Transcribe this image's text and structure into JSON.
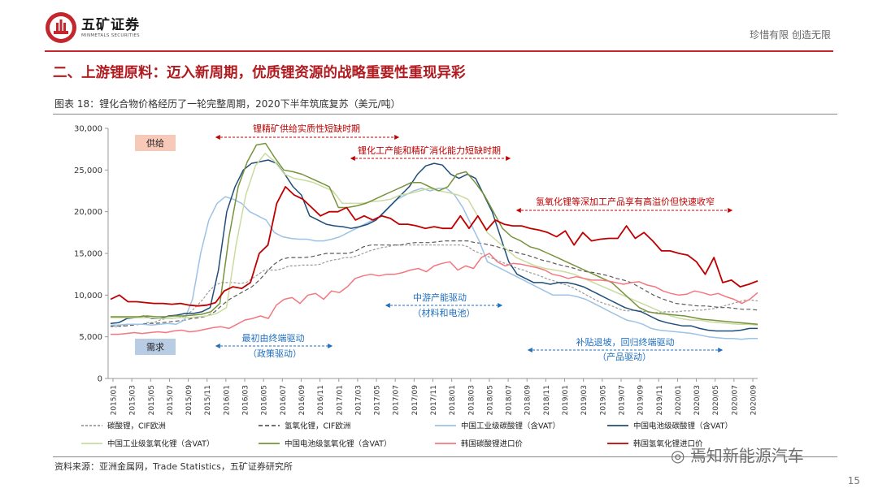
{
  "header": {
    "logo_name": "五矿证券",
    "logo_sub": "MINMETALS SECURITIES",
    "slogan": "珍惜有限  创造无限"
  },
  "section_title": "二、上游锂原料：迈入新周期，优质锂资源的战略重要性重现异彩",
  "figure_title": "图表 18：锂化合物价格经历了一轮完整周期，2020下半年筑底复苏（美元/吨）",
  "source": "资料来源：亚洲金属网，Trade Statistics，五矿证券研究所",
  "page_number": "15",
  "watermark": "焉知新能源汽车",
  "colors": {
    "brand_red": "#c3262c",
    "supply_box": "#f7c9b8",
    "demand_box": "#b8cce4"
  },
  "chart_data": {
    "type": "line",
    "title": "锂化合物价格经历了一轮完整周期，2020下半年筑底复苏（美元/吨）",
    "ylim": [
      0,
      30000
    ],
    "yticks": [
      "0",
      "5,000",
      "10,000",
      "15,000",
      "20,000",
      "25,000",
      "30,000"
    ],
    "yvalues": [
      0,
      5000,
      10000,
      15000,
      20000,
      25000,
      30000
    ],
    "x_labels": [
      "2015/01",
      "2015/03",
      "2015/05",
      "2015/07",
      "2015/09",
      "2015/11",
      "2016/01",
      "2016/03",
      "2016/05",
      "2016/07",
      "2016/09",
      "2016/11",
      "2017/01",
      "2017/03",
      "2017/05",
      "2017/07",
      "2017/09",
      "2017/11",
      "2018/01",
      "2018/03",
      "2018/05",
      "2018/07",
      "2018/09",
      "2018/11",
      "2019/01",
      "2019/03",
      "2019/05",
      "2019/07",
      "2019/09",
      "2019/11",
      "2020/01",
      "2020/03",
      "2020/05",
      "2020/07",
      "2020/09"
    ],
    "series": [
      {
        "name": "碳酸锂，CIF欧洲",
        "color": "#9a9a9a",
        "dash": "3,2",
        "width": 1.2,
        "values": [
          6200,
          6200,
          6300,
          6500,
          6500,
          6500,
          6700,
          6700,
          7000,
          7200,
          7200,
          7300,
          7500,
          8000,
          8700,
          9500,
          10500,
          11200,
          11500,
          11500,
          11500,
          11400,
          11500,
          12000,
          12500,
          13000,
          13000,
          13000,
          13200,
          13500,
          13500,
          13600,
          13600,
          13600,
          13700,
          14000,
          14200,
          14300,
          14500,
          14500,
          14700,
          15000,
          15300,
          15500,
          15700,
          15800,
          16000,
          16000,
          16000,
          16000,
          16000,
          16000,
          16000,
          16000,
          16000,
          16000,
          16000,
          16000,
          15800,
          15300,
          15000,
          14700,
          14400,
          14100,
          13800,
          13500,
          13200,
          13000,
          12700,
          12500,
          12200,
          11900,
          11700,
          11400,
          11200,
          10900,
          10500,
          10100,
          9700,
          9300,
          9000,
          8800,
          8500,
          8200,
          8100,
          8200,
          8100,
          8000,
          7900,
          7900,
          8000,
          8000,
          8000,
          8100,
          8100,
          8200,
          8200,
          8300,
          8400,
          8600,
          8800,
          9000,
          9200,
          9400,
          9400,
          9300
        ]
      },
      {
        "name": "氢氧化锂，CIF欧洲",
        "color": "#5a5a5a",
        "dash": "5,3",
        "width": 1.2,
        "values": [
          6300,
          6300,
          6300,
          6400,
          6500,
          6600,
          6600,
          6700,
          6800,
          6900,
          7000,
          7200,
          7300,
          7500,
          8000,
          8800,
          9500,
          10000,
          10500,
          11000,
          11800,
          12800,
          13700,
          14300,
          14500,
          14500,
          14500,
          14600,
          14800,
          15000,
          15000,
          15000,
          15000,
          15300,
          15800,
          16000,
          16000,
          16000,
          16000,
          16000,
          16200,
          16300,
          16300,
          16300,
          16400,
          16500,
          16500,
          16500,
          16500,
          16300,
          16200,
          16000,
          15800,
          15500,
          15300,
          15000,
          14800,
          14500,
          14200,
          14000,
          13700,
          13500,
          13300,
          13000,
          12800,
          12700,
          12500,
          12300,
          12000,
          11800,
          11500,
          11000,
          10500,
          10000,
          9600,
          9300,
          9000,
          8900,
          8800,
          8700,
          8700,
          8600,
          8500,
          8500,
          8400,
          8300,
          8300,
          8200
        ]
      },
      {
        "name": "中国工业级碳酸锂（含VAT）",
        "color": "#9cc2e5",
        "dash": "",
        "width": 1.5,
        "values": [
          6400,
          6400,
          6500,
          6500,
          6500,
          6400,
          6500,
          6600,
          6500,
          7000,
          9500,
          15000,
          19000,
          21000,
          21800,
          21500,
          21000,
          20000,
          19500,
          19000,
          17500,
          17000,
          16800,
          16700,
          16700,
          16500,
          16500,
          16700,
          17000,
          17500,
          18000,
          18500,
          19000,
          19500,
          20500,
          21500,
          22000,
          22500,
          22800,
          22500,
          22800,
          22800,
          22000,
          20500,
          18500,
          16500,
          14000,
          13500,
          13000,
          12500,
          12000,
          11500,
          11000,
          10500,
          10000,
          10000,
          10000,
          9800,
          9500,
          9000,
          8500,
          8000,
          7500,
          7000,
          6800,
          6500,
          6000,
          5800,
          5700,
          5600,
          5500,
          5400,
          5200,
          5000,
          4900,
          4800,
          4800,
          4700,
          4800,
          4800
        ]
      },
      {
        "name": "中国电池级碳酸锂（含VAT）",
        "color": "#1f4e79",
        "dash": "",
        "width": 1.5,
        "values": [
          6600,
          6700,
          7200,
          7300,
          7500,
          7200,
          7200,
          7500,
          7600,
          7800,
          7800,
          8000,
          8500,
          13000,
          20000,
          23000,
          25000,
          25800,
          26000,
          26200,
          25800,
          24500,
          23000,
          22000,
          19500,
          19000,
          18500,
          18300,
          18200,
          18000,
          18200,
          18500,
          19000,
          20000,
          21000,
          22000,
          23000,
          24500,
          25500,
          25800,
          25600,
          24500,
          24000,
          24500,
          24000,
          22000,
          20000,
          17000,
          14000,
          12500,
          12000,
          11500,
          11500,
          11300,
          11500,
          11500,
          11300,
          11000,
          10500,
          10000,
          9500,
          9000,
          8500,
          8200,
          8000,
          7500,
          7000,
          6700,
          6500,
          6300,
          6300,
          6000,
          5800,
          5700,
          5700,
          5700,
          5800,
          6000,
          6000
        ]
      },
      {
        "name": "中国工业级氢氧化锂（含VAT）",
        "color": "#c9dba0",
        "dash": "",
        "width": 1.5,
        "values": [
          7300,
          7300,
          7300,
          7300,
          7300,
          7200,
          7200,
          7300,
          7300,
          7400,
          7500,
          7800,
          8500,
          16000,
          22000,
          25500,
          27000,
          26000,
          24500,
          24000,
          23800,
          23500,
          23000,
          22500,
          21000,
          21000,
          21000,
          21200,
          21300,
          21500,
          22000,
          22200,
          22500,
          22800,
          22500,
          22300,
          22000,
          21500,
          19500,
          17500,
          16500,
          15500,
          14500,
          14000,
          13500,
          13200,
          13000,
          12800,
          12500,
          12000,
          11500,
          11000,
          10500,
          10000,
          9500,
          9000,
          8500,
          8000,
          7500,
          7200,
          7000,
          7000,
          6800,
          6700,
          6600,
          6500,
          6500,
          6400
        ]
      },
      {
        "name": "中国电池级氢氧化锂（含VAT）",
        "color": "#77933c",
        "dash": "",
        "width": 1.5,
        "values": [
          7400,
          7400,
          7400,
          7400,
          7500,
          7400,
          7400,
          7500,
          7500,
          7600,
          7700,
          8000,
          9000,
          17000,
          23000,
          26000,
          28000,
          28200,
          26500,
          25000,
          24800,
          24500,
          24000,
          23500,
          23000,
          20500,
          20500,
          20700,
          21000,
          21500,
          22000,
          22500,
          23000,
          23500,
          23500,
          23000,
          22500,
          23000,
          24500,
          24800,
          23500,
          22000,
          20000,
          18000,
          17000,
          16500,
          15800,
          15500,
          15000,
          14500,
          14000,
          13500,
          13000,
          12500,
          12000,
          11500,
          10500,
          9500,
          8500,
          8000,
          7800,
          7700,
          7600,
          7500,
          7300,
          7100,
          7000,
          6900,
          6800,
          6700,
          6600,
          6500
        ]
      },
      {
        "name": "韩国碳酸锂进口价",
        "color": "#f4777f",
        "dash": "",
        "width": 1.5,
        "values": [
          5300,
          5300,
          5400,
          5500,
          5400,
          5500,
          5600,
          5500,
          5700,
          5800,
          5600,
          5700,
          5900,
          6100,
          6200,
          6000,
          6500,
          7000,
          7200,
          7500,
          7200,
          8800,
          9500,
          9700,
          9000,
          10000,
          10200,
          9500,
          10500,
          10300,
          11000,
          12000,
          12300,
          12500,
          12300,
          12500,
          12500,
          12700,
          13000,
          13200,
          12800,
          13500,
          13800,
          14000,
          13000,
          13500,
          13200,
          14500,
          15000,
          14000,
          13500,
          13800,
          13700,
          13500,
          13300,
          13000,
          12500,
          12300,
          12000,
          12200,
          12000,
          11800,
          11800,
          11700,
          11500,
          11300,
          11500,
          11600,
          11200,
          11000,
          10500,
          10200,
          10000,
          10100,
          10500,
          10300,
          10000,
          10200,
          9800,
          9500,
          9000,
          9500,
          10300
        ]
      },
      {
        "name": "韩国氢氧化锂进口价",
        "color": "#c00000",
        "dash": "",
        "width": 1.8,
        "values": [
          9500,
          10000,
          9200,
          9200,
          9100,
          9000,
          9000,
          8900,
          9000,
          8800,
          8700,
          8800,
          9100,
          10500,
          11000,
          10800,
          11500,
          15000,
          16000,
          21000,
          23000,
          22000,
          21500,
          20500,
          19500,
          20000,
          20000,
          20500,
          19000,
          19500,
          19000,
          19500,
          19200,
          18500,
          18500,
          18300,
          18000,
          18200,
          18000,
          18000,
          19500,
          18000,
          19500,
          17800,
          19000,
          18500,
          18300,
          18300,
          18000,
          17800,
          17500,
          17000,
          17700,
          16000,
          17500,
          16500,
          16700,
          16800,
          16800,
          18300,
          16800,
          17500,
          16500,
          15300,
          15300,
          15000,
          14800,
          14000,
          12500,
          14500,
          11500,
          11800,
          11000,
          11300,
          11700
        ]
      }
    ],
    "annotations": {
      "supply_box": "供给",
      "demand_box": "需求",
      "arrow1": "锂精矿供给实质性短缺时期",
      "arrow2": "锂化工产能和精矿消化能力短缺时期",
      "arrow3": "氢氧化锂等深加工产品享有高溢价但快速收窄",
      "arrow4_line1": "最初由终端驱动",
      "arrow4_line2": "（政策驱动）",
      "arrow5_line1": "中游产能驱动",
      "arrow5_line2": "（材料和电池）",
      "arrow6_line1": "补贴退坡，回归终端驱动",
      "arrow6_line2": "（产品驱动）"
    },
    "legend": [
      {
        "label": "碳酸锂，CIF欧洲",
        "color": "#9a9a9a",
        "dash": "3,2"
      },
      {
        "label": "氢氧化锂，CIF欧洲",
        "color": "#5a5a5a",
        "dash": "5,3"
      },
      {
        "label": "中国工业级碳酸锂（含VAT）",
        "color": "#9cc2e5",
        "dash": ""
      },
      {
        "label": "中国电池级碳酸锂（含VAT）",
        "color": "#1f4e79",
        "dash": ""
      },
      {
        "label": "中国工业级氢氧化锂（含VAT）",
        "color": "#c9dba0",
        "dash": ""
      },
      {
        "label": "中国电池级氢氧化锂（含VAT）",
        "color": "#77933c",
        "dash": ""
      },
      {
        "label": "韩国碳酸锂进口价",
        "color": "#f4777f",
        "dash": ""
      },
      {
        "label": "韩国氢氧化锂进口价",
        "color": "#c00000",
        "dash": ""
      }
    ]
  }
}
